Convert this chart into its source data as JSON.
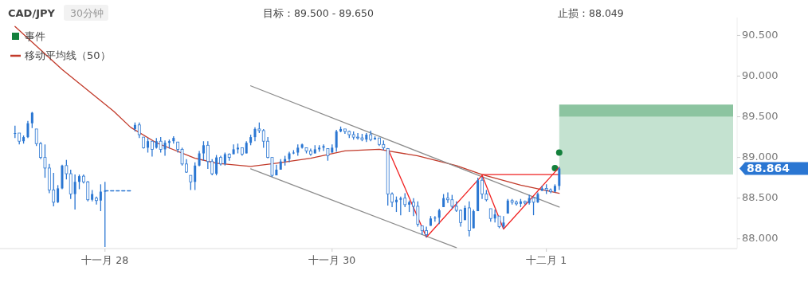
{
  "chart_data": {
    "type": "candlestick",
    "title": "CAD/JPY",
    "subtitle": "30分钟",
    "annotations": [
      "目标：89.500 - 89.650",
      "止损：88.049",
      "88.864"
    ],
    "color": "#2a76d2",
    "legend": "top left",
    "grid": false,
    "ylim": [
      87.88,
      90.72
    ],
    "yticks": [
      {
        "value": 88,
        "label": "88.000"
      },
      {
        "value": 88.5,
        "label": "88.500"
      },
      {
        "value": 89,
        "label": "89.000"
      },
      {
        "value": 89.5,
        "label": "89.500"
      },
      {
        "value": 90,
        "label": "90.000"
      },
      {
        "value": 90.5,
        "label": "90.500"
      }
    ],
    "categories": [
      null,
      null,
      null,
      null,
      null,
      null,
      null,
      null,
      null,
      null,
      null,
      null,
      null,
      null,
      null,
      null,
      null,
      null,
      null,
      null,
      null,
      null,
      null,
      null,
      "十一月 28",
      null,
      null,
      null,
      null,
      null,
      null,
      null,
      null,
      null,
      null,
      null,
      null,
      null,
      null,
      null,
      null,
      null,
      null,
      null,
      null,
      null,
      null,
      null,
      null,
      null,
      null,
      null,
      null,
      null,
      null,
      null,
      null,
      null,
      null,
      null,
      null,
      null,
      null,
      null,
      null,
      null,
      null,
      null,
      null,
      null,
      null,
      null,
      null,
      null,
      null,
      null,
      null,
      "十一月 30",
      null,
      null,
      null,
      null,
      null,
      null,
      null,
      null,
      null,
      null,
      null,
      null,
      null,
      null,
      null,
      null,
      null,
      null,
      null,
      null,
      null,
      null,
      null,
      null,
      null,
      null,
      null,
      null,
      null,
      null,
      null,
      null,
      null,
      null,
      null,
      null,
      null,
      null,
      null,
      null,
      null,
      null,
      null,
      null,
      null,
      null,
      null,
      null,
      null,
      "十二月 1",
      null,
      null,
      null,
      null,
      null,
      null,
      null,
      null,
      null,
      null,
      null,
      null,
      null,
      null,
      null,
      null,
      null,
      null,
      null,
      null,
      null,
      null,
      null,
      null,
      null,
      null,
      null,
      null,
      null,
      null,
      null,
      null,
      null,
      null,
      null,
      null,
      null,
      null,
      null,
      null,
      null,
      null,
      null,
      null
    ],
    "ohlc": [
      null,
      null,
      null,
      [
        89.3,
        89.39,
        89.24,
        89.3
      ],
      [
        89.3,
        89.3,
        89.16,
        89.2
      ],
      [
        89.2,
        89.27,
        89.17,
        89.25
      ],
      [
        89.25,
        89.45,
        89.24,
        89.42
      ],
      [
        89.42,
        89.56,
        89.36,
        89.55
      ],
      [
        89.35,
        89.35,
        89.14,
        89.17
      ],
      [
        89.17,
        89.19,
        88.98,
        89.0
      ],
      [
        89.0,
        89.16,
        88.75,
        88.87
      ],
      [
        88.87,
        88.92,
        88.56,
        88.6
      ],
      [
        88.6,
        88.81,
        88.4,
        88.45
      ],
      [
        88.45,
        88.66,
        88.44,
        88.62
      ],
      [
        88.62,
        88.91,
        88.61,
        88.9
      ],
      [
        88.9,
        88.97,
        88.73,
        88.8
      ],
      [
        88.8,
        88.85,
        88.49,
        88.55
      ],
      [
        88.55,
        88.79,
        88.36,
        88.7
      ],
      [
        88.7,
        88.79,
        88.61,
        88.77
      ],
      [
        88.77,
        88.79,
        88.68,
        88.7
      ],
      [
        88.7,
        88.71,
        88.46,
        88.48
      ],
      [
        88.48,
        88.6,
        88.46,
        88.55
      ],
      [
        88.5,
        88.52,
        88.42,
        88.47
      ],
      [
        88.47,
        88.67,
        88.34,
        88.58
      ],
      [
        88.58,
        88.7,
        87.9,
        88.59
      ],
      null,
      null,
      null,
      null,
      null,
      null,
      [
        89.35,
        89.43,
        89.32,
        89.4
      ],
      [
        89.4,
        89.43,
        89.24,
        89.28
      ],
      [
        89.25,
        89.25,
        89.11,
        89.12
      ],
      [
        89.12,
        89.24,
        89.06,
        89.2
      ],
      [
        89.2,
        89.2,
        89.01,
        89.1
      ],
      [
        89.12,
        89.24,
        89.11,
        89.2
      ],
      [
        89.2,
        89.25,
        89.06,
        89.1
      ],
      [
        89.1,
        89.21,
        89.02,
        89.18
      ],
      [
        89.18,
        89.22,
        89.11,
        89.2
      ],
      [
        89.2,
        89.26,
        89.17,
        89.24
      ],
      [
        89.19,
        89.19,
        89.06,
        89.1
      ],
      [
        89.1,
        89.12,
        88.9,
        88.92
      ],
      [
        88.92,
        88.98,
        88.81,
        88.82
      ],
      [
        88.78,
        88.78,
        88.6,
        88.7
      ],
      [
        88.7,
        88.94,
        88.6,
        88.9
      ],
      [
        88.9,
        89.08,
        88.89,
        89.05
      ],
      [
        89.05,
        89.2,
        88.96,
        89.15
      ],
      [
        89.15,
        89.2,
        88.86,
        88.95
      ],
      [
        88.95,
        88.98,
        88.78,
        88.8
      ],
      [
        88.8,
        89.03,
        88.78,
        89.0
      ],
      [
        89.0,
        89.02,
        88.9,
        88.92
      ],
      [
        88.92,
        89.06,
        88.9,
        89.04
      ],
      [
        89.04,
        89.05,
        88.96,
        89.0
      ],
      [
        89.04,
        89.16,
        89.04,
        89.1
      ],
      [
        89.1,
        89.17,
        89.05,
        89.12
      ],
      [
        89.12,
        89.12,
        89.02,
        89.04
      ],
      [
        89.05,
        89.2,
        89.05,
        89.18
      ],
      [
        89.18,
        89.28,
        89.15,
        89.25
      ],
      [
        89.25,
        89.37,
        89.2,
        89.35
      ],
      [
        89.35,
        89.43,
        89.3,
        89.33
      ],
      [
        89.33,
        89.35,
        89.12,
        89.2
      ],
      [
        89.2,
        89.25,
        88.99,
        89.0
      ],
      [
        89.0,
        89.0,
        88.76,
        88.78
      ],
      [
        88.78,
        88.91,
        88.78,
        88.85
      ],
      [
        88.85,
        88.98,
        88.85,
        88.95
      ],
      [
        88.95,
        89.02,
        88.9,
        88.98
      ],
      [
        88.98,
        89.07,
        88.94,
        89.05
      ],
      [
        89.05,
        89.09,
        89.04,
        89.06
      ],
      [
        89.06,
        89.16,
        89.02,
        89.12
      ],
      [
        89.12,
        89.17,
        89.11,
        89.16
      ],
      [
        89.12,
        89.12,
        89.05,
        89.08
      ],
      [
        89.08,
        89.11,
        89.02,
        89.04
      ],
      [
        89.05,
        89.15,
        89.05,
        89.1
      ],
      [
        89.1,
        89.15,
        89.07,
        89.12
      ],
      [
        89.12,
        89.16,
        89.08,
        89.14
      ],
      [
        89.11,
        89.11,
        88.96,
        89.02
      ],
      [
        89.06,
        89.16,
        89.06,
        89.12
      ],
      [
        89.12,
        89.34,
        89.07,
        89.32
      ],
      [
        89.32,
        89.38,
        89.31,
        89.35
      ],
      [
        89.35,
        89.35,
        89.29,
        89.32
      ],
      [
        89.32,
        89.33,
        89.24,
        89.28
      ],
      [
        89.28,
        89.32,
        89.22,
        89.25
      ],
      [
        89.25,
        89.3,
        89.22,
        89.24
      ],
      [
        89.24,
        89.29,
        89.2,
        89.22
      ],
      [
        89.22,
        89.3,
        89.19,
        89.28
      ],
      [
        89.28,
        89.33,
        89.2,
        89.22
      ],
      [
        89.22,
        89.26,
        89.22,
        89.24
      ],
      [
        89.24,
        89.24,
        89.14,
        89.16
      ],
      [
        89.16,
        89.21,
        89.09,
        89.12
      ],
      [
        89.11,
        89.11,
        88.41,
        88.55
      ],
      [
        88.55,
        88.57,
        88.39,
        88.45
      ],
      [
        88.45,
        88.52,
        88.33,
        88.48
      ],
      [
        88.48,
        88.52,
        88.29,
        88.5
      ],
      [
        88.5,
        88.56,
        88.39,
        88.42
      ],
      [
        88.42,
        88.47,
        88.33,
        88.45
      ],
      [
        88.45,
        88.5,
        88.28,
        88.4
      ],
      [
        88.4,
        88.46,
        88.15,
        88.18
      ],
      [
        88.16,
        88.16,
        88.05,
        88.1
      ],
      [
        88.1,
        88.15,
        88.02,
        88.05
      ],
      [
        88.16,
        88.28,
        88.16,
        88.25
      ],
      [
        88.25,
        88.28,
        88.21,
        88.26
      ],
      [
        88.26,
        88.37,
        88.18,
        88.35
      ],
      [
        88.39,
        88.55,
        88.39,
        88.5
      ],
      [
        88.5,
        88.57,
        88.44,
        88.48
      ],
      [
        88.48,
        88.54,
        88.37,
        88.4
      ],
      [
        88.4,
        88.46,
        88.33,
        88.35
      ],
      [
        88.35,
        88.36,
        88.15,
        88.2
      ],
      [
        88.23,
        88.41,
        88.23,
        88.38
      ],
      [
        88.38,
        88.46,
        88.03,
        88.1
      ],
      [
        88.13,
        88.36,
        88.13,
        88.34
      ],
      [
        88.34,
        88.75,
        88.34,
        88.72
      ],
      [
        88.72,
        88.76,
        88.49,
        88.55
      ],
      [
        88.55,
        88.6,
        88.46,
        88.48
      ],
      [
        88.37,
        88.37,
        88.21,
        88.25
      ],
      [
        88.25,
        88.36,
        88.2,
        88.3
      ],
      [
        88.28,
        88.28,
        88.13,
        88.15
      ],
      [
        88.15,
        88.28,
        88.13,
        88.2
      ],
      [
        88.31,
        88.49,
        88.31,
        88.47
      ],
      [
        88.47,
        88.49,
        88.42,
        88.45
      ],
      [
        88.45,
        88.47,
        88.41,
        88.43
      ],
      [
        88.43,
        88.49,
        88.39,
        88.46
      ],
      [
        88.46,
        88.47,
        88.42,
        88.44
      ],
      [
        88.44,
        88.54,
        88.42,
        88.5
      ],
      [
        88.5,
        88.5,
        88.29,
        88.45
      ],
      [
        88.45,
        88.57,
        88.44,
        88.55
      ],
      [
        88.59,
        88.65,
        88.59,
        88.62
      ],
      [
        88.62,
        88.67,
        88.55,
        88.6
      ],
      [
        88.6,
        88.62,
        88.56,
        88.58
      ],
      [
        88.58,
        88.67,
        88.57,
        88.65
      ],
      [
        88.65,
        88.88,
        88.6,
        88.864
      ],
      null,
      null,
      null,
      null,
      null,
      null,
      null,
      null,
      null,
      null,
      null,
      null,
      null,
      null,
      null,
      null,
      null,
      null,
      null,
      null,
      null,
      null,
      null,
      null,
      null,
      null,
      null,
      null,
      null,
      null,
      null,
      null,
      null,
      null,
      null,
      null,
      null,
      null,
      null,
      null,
      null
    ],
    "series": [
      {
        "type": "scatter",
        "name": "事件",
        "color": "#14803c",
        "marker": "circle",
        "values": [
          null,
          null,
          null,
          null,
          null,
          null,
          null,
          null,
          null,
          null,
          null,
          null,
          null,
          null,
          null,
          null,
          null,
          null,
          null,
          null,
          null,
          null,
          null,
          null,
          null,
          null,
          null,
          null,
          null,
          null,
          null,
          null,
          null,
          null,
          null,
          null,
          null,
          null,
          null,
          null,
          null,
          null,
          null,
          null,
          null,
          null,
          null,
          null,
          null,
          null,
          null,
          null,
          null,
          null,
          null,
          null,
          null,
          null,
          null,
          null,
          null,
          null,
          null,
          null,
          null,
          null,
          null,
          null,
          null,
          null,
          null,
          null,
          null,
          null,
          null,
          null,
          null,
          null,
          null,
          null,
          null,
          null,
          null,
          null,
          null,
          null,
          null,
          null,
          null,
          null,
          null,
          null,
          null,
          null,
          null,
          null,
          null,
          null,
          null,
          null,
          null,
          null,
          null,
          null,
          null,
          null,
          null,
          null,
          null,
          null,
          null,
          null,
          null,
          null,
          null,
          null,
          null,
          null,
          null,
          null,
          null,
          null,
          null,
          null,
          null,
          null,
          null,
          null,
          null,
          88.87,
          89.06,
          null,
          null,
          null,
          null,
          null,
          null,
          null,
          null,
          null,
          null,
          null,
          null,
          null,
          null,
          null,
          null,
          null,
          null,
          null,
          null,
          null,
          null,
          null,
          null,
          null,
          null,
          null,
          null,
          null,
          null,
          null,
          null,
          null,
          null,
          null,
          null,
          null,
          null,
          null,
          null,
          null
        ]
      },
      {
        "type": "line",
        "name": "移动平均线（50）",
        "color": "#c23a2a",
        "values": [
          null,
          null,
          null,
          90.61,
          null,
          null,
          null,
          null,
          null,
          null,
          null,
          null,
          null,
          null,
          90.08,
          null,
          null,
          null,
          null,
          null,
          null,
          null,
          null,
          null,
          null,
          null,
          89.57,
          null,
          null,
          null,
          89.37,
          null,
          null,
          null,
          null,
          null,
          89.18,
          null,
          null,
          null,
          null,
          null,
          null,
          null,
          null,
          88.99,
          null,
          null,
          null,
          null,
          88.93,
          null,
          null,
          null,
          null,
          null,
          null,
          null,
          88.89,
          null,
          null,
          null,
          null,
          null,
          88.93,
          null,
          null,
          null,
          null,
          null,
          null,
          null,
          88.99,
          null,
          null,
          null,
          null,
          null,
          null,
          null,
          89.08,
          null,
          null,
          null,
          null,
          null,
          null,
          null,
          89.1,
          null,
          89.08,
          null,
          null,
          null,
          null,
          null,
          null,
          89.02,
          null,
          null,
          null,
          null,
          null,
          null,
          null,
          null,
          88.9,
          null,
          null,
          null,
          null,
          null,
          88.79,
          null,
          null,
          null,
          null,
          null,
          null,
          null,
          null,
          88.66,
          null,
          null,
          null,
          null,
          null,
          null,
          null,
          null,
          88.56,
          null,
          null,
          null,
          null,
          null,
          null,
          null,
          null,
          null,
          null,
          null,
          null,
          null,
          null,
          null,
          null,
          null,
          null,
          null,
          null,
          null,
          null,
          null,
          null,
          null,
          null,
          null,
          null,
          null,
          null,
          null,
          null,
          null,
          null,
          null,
          null,
          null,
          null,
          null,
          null,
          null
        ]
      },
      {
        "type": "line",
        "color": "#8c8c8c",
        "values": [
          null,
          null,
          null,
          null,
          null,
          null,
          null,
          null,
          null,
          null,
          null,
          null,
          null,
          null,
          null,
          null,
          null,
          null,
          null,
          null,
          null,
          null,
          null,
          null,
          null,
          null,
          null,
          null,
          null,
          null,
          null,
          null,
          null,
          null,
          null,
          null,
          null,
          null,
          null,
          null,
          null,
          null,
          null,
          null,
          null,
          null,
          null,
          null,
          null,
          null,
          null,
          null,
          null,
          null,
          null,
          null,
          null,
          null,
          89.88,
          null,
          null,
          null,
          null,
          null,
          null,
          null,
          null,
          null,
          null,
          null,
          null,
          null,
          null,
          null,
          null,
          null,
          null,
          null,
          null,
          null,
          null,
          null,
          null,
          null,
          null,
          null,
          null,
          null,
          null,
          null,
          null,
          null,
          null,
          null,
          null,
          null,
          null,
          null,
          null,
          null,
          null,
          null,
          null,
          null,
          null,
          null,
          null,
          null,
          null,
          null,
          null,
          null,
          null,
          null,
          null,
          null,
          null,
          null,
          null,
          null,
          null,
          null,
          null,
          null,
          null,
          null,
          null,
          null,
          null,
          null,
          88.39,
          null,
          null,
          null,
          null,
          null,
          null,
          null,
          null,
          null,
          null,
          null,
          null,
          null,
          null,
          null,
          null,
          null,
          null,
          null,
          null,
          null,
          null,
          null,
          null,
          null,
          null,
          null,
          null,
          null,
          null,
          null,
          null,
          null,
          null,
          null,
          null,
          null,
          null,
          null,
          null,
          null
        ]
      },
      {
        "type": "line",
        "color": "#8c8c8c",
        "values": [
          null,
          null,
          null,
          null,
          null,
          null,
          null,
          null,
          null,
          null,
          null,
          null,
          null,
          null,
          null,
          null,
          null,
          null,
          null,
          null,
          null,
          null,
          null,
          null,
          null,
          null,
          null,
          null,
          null,
          null,
          null,
          null,
          null,
          null,
          null,
          null,
          null,
          null,
          null,
          null,
          null,
          null,
          null,
          null,
          null,
          null,
          null,
          null,
          null,
          null,
          null,
          null,
          null,
          null,
          null,
          null,
          null,
          null,
          88.86,
          null,
          null,
          null,
          null,
          null,
          null,
          null,
          null,
          null,
          null,
          null,
          null,
          null,
          null,
          null,
          null,
          null,
          null,
          null,
          null,
          null,
          null,
          null,
          null,
          null,
          null,
          null,
          null,
          null,
          null,
          null,
          null,
          null,
          null,
          null,
          null,
          null,
          null,
          null,
          null,
          null,
          null,
          null,
          null,
          null,
          null,
          null,
          87.89,
          null,
          null,
          null,
          null,
          null,
          null,
          null,
          null,
          null,
          null,
          null,
          null,
          null,
          null,
          null,
          null,
          null,
          null,
          null,
          null,
          null,
          null,
          null,
          null,
          null,
          null,
          null,
          null,
          null,
          null,
          null,
          null,
          null,
          null,
          null,
          null,
          null,
          null,
          null,
          null,
          null,
          null,
          null,
          null,
          null,
          null,
          null,
          null,
          null,
          null,
          null,
          null,
          null,
          null,
          null,
          null,
          null,
          null,
          null,
          null,
          null,
          null,
          null,
          null,
          null
        ]
      },
      {
        "type": "line",
        "color": "#f02020",
        "values": [
          null,
          null,
          null,
          null,
          null,
          null,
          null,
          null,
          null,
          null,
          null,
          null,
          null,
          null,
          null,
          null,
          null,
          null,
          null,
          null,
          null,
          null,
          null,
          null,
          null,
          null,
          null,
          null,
          null,
          null,
          null,
          null,
          null,
          null,
          null,
          null,
          null,
          null,
          null,
          null,
          null,
          null,
          null,
          null,
          null,
          null,
          null,
          null,
          null,
          null,
          null,
          null,
          null,
          null,
          null,
          null,
          null,
          null,
          null,
          null,
          null,
          null,
          null,
          null,
          null,
          null,
          null,
          null,
          null,
          null,
          null,
          null,
          null,
          null,
          null,
          null,
          null,
          null,
          null,
          null,
          null,
          null,
          null,
          null,
          null,
          null,
          null,
          null,
          null,
          null,
          89.11,
          null,
          null,
          null,
          null,
          null,
          null,
          null,
          null,
          88.02,
          null,
          null,
          null,
          null,
          null,
          null,
          null,
          null,
          null,
          null,
          null,
          null,
          88.78,
          null,
          null,
          null,
          null,
          88.12,
          null,
          null,
          null,
          null,
          null,
          null,
          null,
          null,
          null,
          null,
          null,
          null,
          88.88,
          null,
          null,
          null,
          null,
          null,
          null,
          null,
          null,
          null,
          null,
          null,
          null,
          null,
          null,
          null,
          null,
          null,
          null,
          null,
          null,
          null,
          null,
          null,
          null,
          null,
          null,
          null,
          null,
          null,
          null,
          null,
          null,
          null,
          null,
          null,
          null,
          null,
          null,
          null,
          null,
          null
        ]
      },
      {
        "type": "line",
        "color": "#f02020",
        "values": [
          null,
          null,
          null,
          null,
          null,
          null,
          null,
          null,
          null,
          null,
          null,
          null,
          null,
          null,
          null,
          null,
          null,
          null,
          null,
          null,
          null,
          null,
          null,
          null,
          null,
          null,
          null,
          null,
          null,
          null,
          null,
          null,
          null,
          null,
          null,
          null,
          null,
          null,
          null,
          null,
          null,
          null,
          null,
          null,
          null,
          null,
          null,
          null,
          null,
          null,
          null,
          null,
          null,
          null,
          null,
          null,
          null,
          null,
          null,
          null,
          null,
          null,
          null,
          null,
          null,
          null,
          null,
          null,
          null,
          null,
          null,
          null,
          null,
          null,
          null,
          null,
          null,
          null,
          null,
          null,
          null,
          null,
          null,
          null,
          null,
          null,
          null,
          null,
          null,
          null,
          null,
          null,
          null,
          null,
          null,
          null,
          null,
          null,
          null,
          null,
          null,
          null,
          null,
          null,
          null,
          null,
          null,
          null,
          null,
          null,
          null,
          null,
          88.79,
          null,
          null,
          null,
          null,
          null,
          null,
          null,
          null,
          null,
          null,
          null,
          null,
          null,
          null,
          null,
          null,
          null,
          88.79,
          null,
          null,
          null,
          null,
          null,
          null,
          null,
          null,
          null,
          null,
          null,
          null,
          null,
          null,
          null,
          null,
          null,
          null,
          null,
          null,
          null,
          null,
          null,
          null,
          null,
          null,
          null,
          null,
          null,
          null,
          null,
          null,
          null,
          null,
          null,
          null,
          null,
          null,
          null,
          null,
          null
        ]
      },
      {
        "type": "line",
        "color": "#2a76d2",
        "line_style": "dashed",
        "values": [
          null,
          null,
          null,
          null,
          null,
          null,
          null,
          null,
          null,
          null,
          null,
          null,
          null,
          null,
          null,
          null,
          null,
          null,
          null,
          null,
          null,
          null,
          null,
          null,
          88.59,
          null,
          null,
          null,
          null,
          null,
          88.59,
          null,
          null,
          null,
          null,
          null,
          null,
          null,
          null,
          null,
          null,
          null,
          null,
          null,
          null,
          null,
          null,
          null,
          null,
          null,
          null,
          null,
          null,
          null,
          null,
          null,
          null,
          null,
          null,
          null,
          null,
          null,
          null,
          null,
          null,
          null,
          null,
          null,
          null,
          null,
          null,
          null,
          null,
          null,
          null,
          null,
          null,
          null,
          null,
          null,
          null,
          null,
          null,
          null,
          null,
          null,
          null,
          null,
          null,
          null,
          null,
          null,
          null,
          null,
          null,
          null,
          null,
          null,
          null,
          null,
          null,
          null,
          null,
          null,
          null,
          null,
          null,
          null,
          null,
          null,
          null,
          null,
          null,
          null,
          null,
          null,
          null,
          null,
          null,
          null,
          null,
          null,
          null,
          null,
          null,
          null,
          null,
          null,
          null,
          null,
          null,
          null,
          null,
          null,
          null,
          null,
          null,
          null,
          null,
          null,
          null,
          null,
          null,
          null,
          null,
          null,
          null,
          null,
          null,
          null,
          null,
          null,
          null,
          null,
          null,
          null,
          null,
          null,
          null,
          null,
          null,
          null,
          null,
          null,
          null,
          null,
          null,
          null,
          null,
          null,
          null,
          null
        ]
      }
    ],
    "bands": [
      {
        "axis": "y",
        "from": 88.79,
        "to": 89.5,
        "color": "#c4e2d0"
      },
      {
        "axis": "y",
        "from": 89.5,
        "to": 89.65,
        "color": "#8cc4a0"
      }
    ]
  }
}
